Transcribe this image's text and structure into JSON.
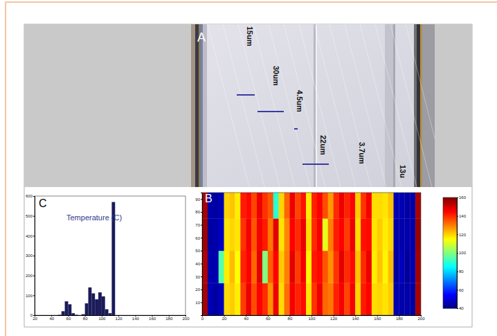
{
  "panels": {
    "A": {
      "letter": "A",
      "labels": [
        "15um",
        "30um",
        "4.5um",
        "22um",
        "3.7um",
        "13u"
      ]
    }
  },
  "chart_data": [
    {
      "type": "heatmap",
      "letter": "B",
      "x_edges": [
        0,
        5,
        10,
        15,
        20,
        25,
        30,
        35,
        40,
        45,
        50,
        55,
        60,
        65,
        70,
        75,
        80,
        85,
        90,
        95,
        100,
        105,
        110,
        115,
        120,
        125,
        130,
        135,
        140,
        145,
        150,
        155,
        160,
        165,
        170,
        175,
        180,
        185,
        190,
        195,
        200
      ],
      "y_edges": [
        0,
        25,
        50,
        75,
        95
      ],
      "cells": [
        [
          155,
          46,
          44,
          47,
          119,
          121,
          117,
          138,
          147,
          136,
          145,
          140,
          128,
          147,
          119,
          132,
          146,
          141,
          144,
          118,
          139,
          147,
          133,
          131,
          141,
          146,
          137,
          146,
          120,
          142,
          145,
          119,
          120,
          118,
          121,
          46,
          45,
          45,
          44,
          155
        ],
        [
          154,
          45,
          46,
          95,
          117,
          123,
          115,
          141,
          145,
          133,
          148,
          100,
          134,
          145,
          121,
          130,
          148,
          138,
          146,
          116,
          142,
          144,
          135,
          128,
          139,
          148,
          140,
          144,
          122,
          140,
          147,
          117,
          122,
          116,
          123,
          44,
          47,
          43,
          46,
          156
        ],
        [
          156,
          44,
          45,
          48,
          118,
          120,
          118,
          139,
          146,
          135,
          146,
          142,
          131,
          148,
          118,
          129,
          145,
          140,
          147,
          119,
          140,
          146,
          112,
          130,
          142,
          145,
          138,
          147,
          119,
          143,
          144,
          118,
          121,
          117,
          120,
          45,
          45,
          45,
          45,
          157
        ],
        [
          155,
          45,
          44,
          46,
          120,
          122,
          117,
          142,
          144,
          137,
          147,
          139,
          135,
          90,
          120,
          133,
          147,
          137,
          143,
          117,
          141,
          145,
          136,
          127,
          140,
          147,
          141,
          145,
          121,
          139,
          146,
          119,
          119,
          118,
          122,
          46,
          46,
          44,
          45,
          155
        ]
      ],
      "xlim": [
        0,
        200
      ],
      "xticks": [
        0,
        20,
        40,
        60,
        80,
        100,
        120,
        140,
        160,
        180,
        200
      ],
      "ylim": [
        0,
        95
      ],
      "yticks": [
        10,
        20,
        30,
        40,
        50,
        60,
        70,
        80,
        90
      ],
      "colorbar_range": [
        40,
        160
      ],
      "colorbar_ticks": [
        40,
        60,
        80,
        100,
        120,
        140,
        160
      ]
    },
    {
      "type": "histogram",
      "letter": "C",
      "title": "Temperature (C)",
      "bins": [
        20,
        24,
        28,
        32,
        36,
        40,
        44,
        48,
        52,
        56,
        60,
        64,
        68,
        72,
        76,
        80,
        84,
        88,
        92,
        96,
        100,
        104,
        108,
        112,
        116,
        120,
        124,
        128,
        132,
        136,
        140,
        144,
        148,
        152,
        156,
        160,
        164,
        168,
        172,
        176,
        180,
        184,
        188,
        192,
        196,
        200
      ],
      "counts": [
        0,
        0,
        0,
        0,
        0,
        0,
        0,
        2,
        20,
        70,
        55,
        10,
        2,
        0,
        5,
        60,
        140,
        110,
        80,
        115,
        95,
        30,
        10,
        570,
        0,
        0,
        0,
        0,
        0,
        0,
        0,
        0,
        0,
        0,
        0,
        0,
        0,
        0,
        0,
        0,
        0,
        0,
        0,
        0,
        0
      ],
      "color": "#1b1b5a",
      "xlim": [
        20,
        200
      ],
      "xticks": [
        20,
        40,
        60,
        80,
        100,
        120,
        140,
        160,
        180,
        200
      ],
      "ylim": [
        0,
        600
      ],
      "yticks": [
        0,
        100,
        200,
        300,
        400,
        500,
        600
      ]
    }
  ]
}
